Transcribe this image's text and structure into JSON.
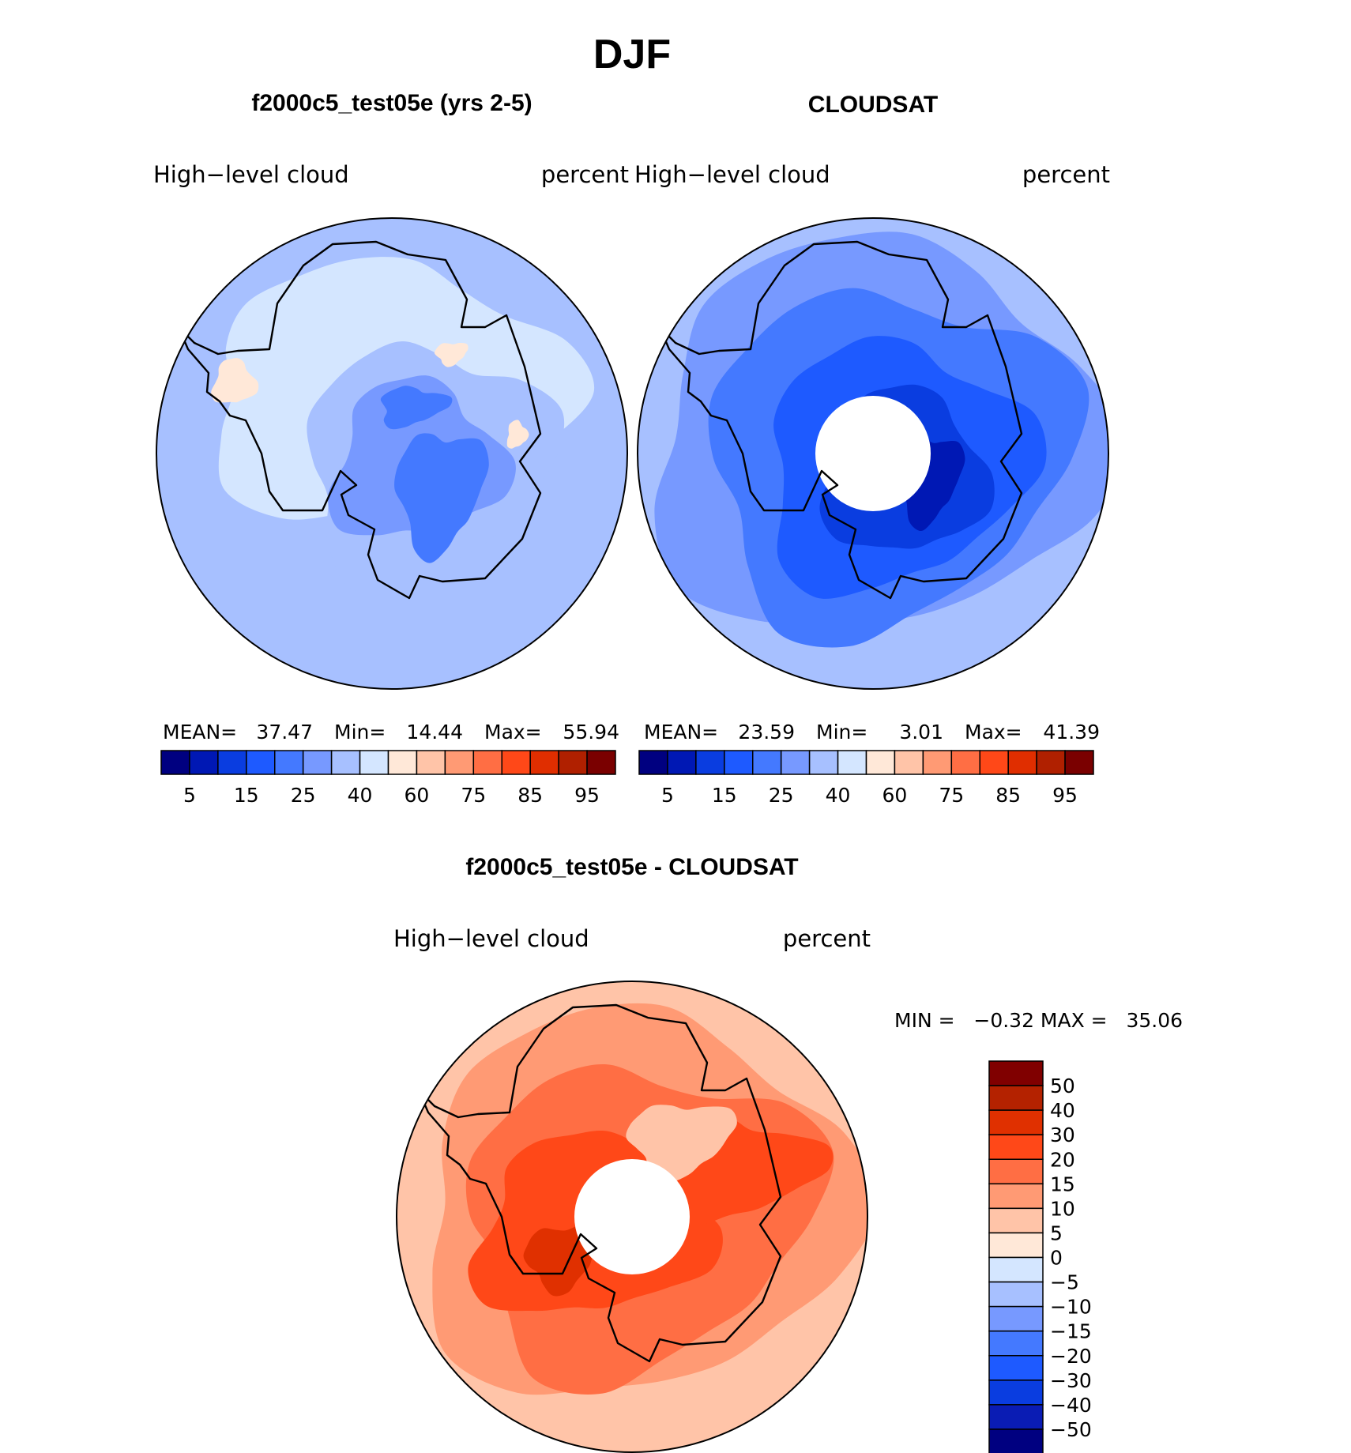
{
  "title": "DJF",
  "panels": {
    "model": {
      "title": "f2000c5_test05e (yrs 2-5)",
      "left_label": "High−level cloud",
      "right_label": "percent"
    },
    "obs": {
      "title": "CLOUDSAT",
      "left_label": "High−level cloud",
      "right_label": "percent"
    },
    "diff": {
      "title": "f2000c5_test05e - CLOUDSAT",
      "left_label": "High−level cloud",
      "right_label": "percent"
    }
  },
  "stats": {
    "model": {
      "mean_label": "MEAN=",
      "mean": "37.47",
      "min_label": "Min=",
      "min": "14.44",
      "max_label": "Max=",
      "max": "55.94"
    },
    "obs": {
      "mean_label": "MEAN=",
      "mean": "23.59",
      "min_label": "Min=",
      "min": "3.01",
      "max_label": "Max=",
      "max": "41.39"
    },
    "diff": {
      "text": "MIN =   −0.32 MAX =   35.06"
    }
  },
  "colors": {
    "abs_scale": [
      "#000080",
      "#0018b4",
      "#0a3de0",
      "#1e5aff",
      "#4479ff",
      "#7799ff",
      "#a7c0ff",
      "#d4e6ff",
      "#ffe8d8",
      "#ffc4a8",
      "#ff9a74",
      "#ff6e44",
      "#ff4818",
      "#e02e00",
      "#b02000",
      "#7a0000"
    ],
    "diff_scale": [
      "#000080",
      "#0a1cb4",
      "#0a3de0",
      "#1e5aff",
      "#4479ff",
      "#7799ff",
      "#a7c0ff",
      "#d4e6ff",
      "#ffe8d8",
      "#ffc4a8",
      "#ff9a74",
      "#ff6e44",
      "#ff4818",
      "#e03000",
      "#b42200",
      "#800000"
    ]
  },
  "chart_data": [
    {
      "type": "heatmap",
      "title": "f2000c5_test05e (yrs 2-5)",
      "projection": "south polar stereographic",
      "variable": "High−level cloud",
      "units": "percent",
      "colorbar_ticks": [
        "5",
        "15",
        "25",
        "40",
        "60",
        "75",
        "85",
        "95"
      ],
      "mean": 37.47,
      "min": 14.44,
      "max": 55.94
    },
    {
      "type": "heatmap",
      "title": "CLOUDSAT",
      "projection": "south polar stereographic",
      "variable": "High−level cloud",
      "units": "percent",
      "colorbar_ticks": [
        "5",
        "15",
        "25",
        "40",
        "60",
        "75",
        "85",
        "95"
      ],
      "mean": 23.59,
      "min": 3.01,
      "max": 41.39
    },
    {
      "type": "heatmap",
      "title": "f2000c5_test05e - CLOUDSAT",
      "projection": "south polar stereographic",
      "variable": "High−level cloud",
      "units": "percent",
      "colorbar_ticks": [
        "50",
        "40",
        "30",
        "20",
        "15",
        "10",
        "5",
        "0",
        "−5",
        "−10",
        "−15",
        "−20",
        "−30",
        "−40",
        "−50"
      ],
      "min": -0.32,
      "max": 35.06
    }
  ]
}
